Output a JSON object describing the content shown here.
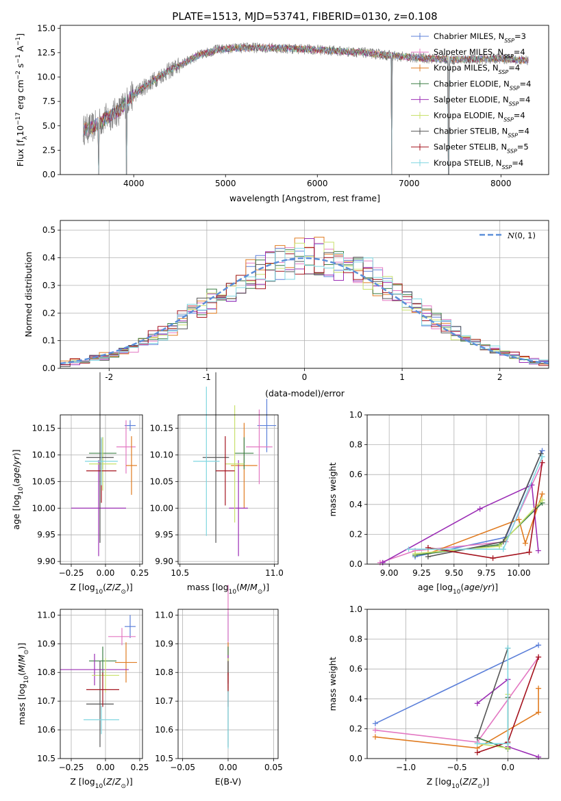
{
  "figure_title": "PLATE=1513, MJD=53741, FIBERID=0130, z=0.108",
  "colors": {
    "Chabrier MILES": "#5b7fd9",
    "Salpeter MILES": "#e377c2",
    "Kroupa MILES": "#e07b20",
    "Chabrier ELODIE": "#3a7d44",
    "Salpeter ELODIE": "#9b2db5",
    "Kroupa ELODIE": "#c8e06a",
    "Chabrier STELIB": "#555555",
    "Salpeter STELIB": "#a4121d",
    "Kroupa STELIB": "#7fd6e0",
    "spectrum": "#808080",
    "gaussian": "#5b8fd9"
  },
  "chart_data": [
    {
      "id": "spectrum",
      "type": "line",
      "title": "PLATE=1513, MJD=53741, FIBERID=0130, z=0.108",
      "xlabel": "wavelength [Angstrom, rest frame]",
      "ylabel": "Flux [f_λ10^-17 erg cm^-2 s^-1 A^-1]",
      "xlim": [
        3200,
        8520
      ],
      "ylim": [
        0,
        15.3
      ],
      "xticks": [
        4000,
        5000,
        6000,
        7000,
        8000
      ],
      "yticks": [
        0.0,
        2.5,
        5.0,
        7.5,
        10.0,
        12.5,
        15.0
      ],
      "grid": false,
      "legend_position": "right",
      "legend": [
        {
          "base": "Chabrier MILES, N",
          "sub": "SSP",
          "tail": "=3"
        },
        {
          "base": "Salpeter MILES, N",
          "sub": "SSP",
          "tail": "=4"
        },
        {
          "base": "Kroupa MILES, N",
          "sub": "SSP",
          "tail": "=4"
        },
        {
          "base": "Chabrier ELODIE, N",
          "sub": "SSP",
          "tail": "=4"
        },
        {
          "base": "Salpeter ELODIE, N",
          "sub": "SSP",
          "tail": "=4"
        },
        {
          "base": "Kroupa ELODIE, N",
          "sub": "SSP",
          "tail": "=4"
        },
        {
          "base": "Chabrier STELIB, N",
          "sub": "SSP",
          "tail": "=4"
        },
        {
          "base": "Salpeter STELIB, N",
          "sub": "SSP",
          "tail": "=5"
        },
        {
          "base": "Kroupa STELIB, N",
          "sub": "SSP",
          "tail": "=4"
        }
      ],
      "continuum": [
        [
          3450,
          4.6
        ],
        [
          3550,
          4.8
        ],
        [
          3700,
          5.8
        ],
        [
          3850,
          6.6
        ],
        [
          3950,
          7.8
        ],
        [
          4100,
          8.9
        ],
        [
          4300,
          10.2
        ],
        [
          4500,
          11.2
        ],
        [
          4700,
          12.2
        ],
        [
          4900,
          12.8
        ],
        [
          5200,
          13.0
        ],
        [
          5500,
          13.0
        ],
        [
          6000,
          12.8
        ],
        [
          6500,
          12.5
        ],
        [
          7000,
          12.0
        ],
        [
          7500,
          11.8
        ],
        [
          8000,
          11.9
        ],
        [
          8300,
          11.7
        ]
      ],
      "dips": [
        {
          "x": 3620,
          "y": 0.0
        },
        {
          "x": 3920,
          "y": 0.0
        },
        {
          "x": 6810,
          "y": 0.0
        },
        {
          "x": 7430,
          "y": 0.0
        }
      ]
    },
    {
      "id": "residuals",
      "type": "histogram",
      "xlabel": "(data-model)/error",
      "ylabel": "Normed distribution",
      "xlim": [
        -2.5,
        2.5
      ],
      "ylim": [
        0,
        0.535
      ],
      "xticks": [
        -2,
        -1,
        0,
        1,
        2
      ],
      "yticks": [
        0.0,
        0.1,
        0.2,
        0.3,
        0.4,
        0.5
      ],
      "grid": true,
      "bin_width": 0.1,
      "legend_position": "top-right",
      "gaussian_label": "N(0, 1)",
      "reference_curve": "normal(0,1)"
    },
    {
      "id": "age_vs_Z",
      "type": "errorbar",
      "xlabel": "Z [log10(Z/Z⊙)]",
      "ylabel": "age [log10(age/yr)]",
      "xlim": [
        -0.33,
        0.27
      ],
      "ylim": [
        9.895,
        10.175
      ],
      "xticks": [
        -0.25,
        0.0,
        0.25
      ],
      "xtick_labels": [
        "−0.25",
        "0.00",
        "0.25"
      ],
      "yticks": [
        9.9,
        9.95,
        10.0,
        10.05,
        10.1,
        10.15
      ],
      "ytick_labels": [
        "9.90",
        "9.95",
        "10.00",
        "10.05",
        "10.10",
        "10.15"
      ],
      "grid": true,
      "points": [
        {
          "model": "Chabrier MILES",
          "x": 0.18,
          "xerr": 0.04,
          "y": 10.155,
          "yerr": 0.01
        },
        {
          "model": "Salpeter MILES",
          "x": 0.15,
          "xerr": 0.07,
          "y": 10.115,
          "yerr": 0.05
        },
        {
          "model": "Kroupa MILES",
          "x": 0.19,
          "xerr": 0.04,
          "y": 10.08,
          "yerr": 0.055
        },
        {
          "model": "Chabrier ELODIE",
          "x": -0.02,
          "xerr": 0.1,
          "y": 10.103,
          "yerr": 0.03
        },
        {
          "model": "Salpeter ELODIE",
          "x": -0.05,
          "xerr": 0.2,
          "y": 10.0,
          "yerr": 0.09
        },
        {
          "model": "Kroupa ELODIE",
          "x": -0.02,
          "xerr": 0.1,
          "y": 10.083,
          "yerr": 0.05
        },
        {
          "model": "Chabrier STELIB",
          "x": -0.04,
          "xerr": 0.1,
          "y": 10.095,
          "yerr": 0.16
        },
        {
          "model": "Salpeter STELIB",
          "x": -0.03,
          "xerr": 0.11,
          "y": 10.07,
          "yerr": 0.06
        },
        {
          "model": "Kroupa STELIB",
          "x": -0.03,
          "xerr": 0.12,
          "y": 10.088,
          "yerr": 0.045
        }
      ]
    },
    {
      "id": "age_vs_mass",
      "type": "errorbar",
      "xlabel": "mass [log10(M/M⊙)]",
      "ylabel": "",
      "xlim": [
        10.49,
        11.02
      ],
      "ylim": [
        9.895,
        10.175
      ],
      "xticks": [
        10.5,
        11.0
      ],
      "xtick_labels": [
        "10.5",
        "11.0"
      ],
      "yticks": [
        9.9,
        9.95,
        10.0,
        10.05,
        10.1,
        10.15
      ],
      "ytick_labels": [
        "9.90",
        "9.95",
        "10.00",
        "10.05",
        "10.10",
        "10.15"
      ],
      "grid": true,
      "points": [
        {
          "model": "Chabrier MILES",
          "x": 10.96,
          "xerr": 0.05,
          "y": 10.155,
          "yerr": 0.05
        },
        {
          "model": "Salpeter MILES",
          "x": 10.92,
          "xerr": 0.07,
          "y": 10.115,
          "yerr": 0.07
        },
        {
          "model": "Kroupa MILES",
          "x": 10.84,
          "xerr": 0.07,
          "y": 10.08,
          "yerr": 0.08
        },
        {
          "model": "Chabrier ELODIE",
          "x": 10.84,
          "xerr": 0.05,
          "y": 10.103,
          "yerr": 0.03
        },
        {
          "model": "Salpeter ELODIE",
          "x": 10.81,
          "xerr": 0.05,
          "y": 10.0,
          "yerr": 0.09
        },
        {
          "model": "Kroupa ELODIE",
          "x": 10.79,
          "xerr": 0.05,
          "y": 10.083,
          "yerr": 0.11
        },
        {
          "model": "Chabrier STELIB",
          "x": 10.69,
          "xerr": 0.07,
          "y": 10.095,
          "yerr": 0.16
        },
        {
          "model": "Salpeter STELIB",
          "x": 10.74,
          "xerr": 0.05,
          "y": 10.07,
          "yerr": 0.065
        },
        {
          "model": "Kroupa STELIB",
          "x": 10.64,
          "xerr": 0.07,
          "y": 10.088,
          "yerr": 0.14
        }
      ]
    },
    {
      "id": "weight_vs_age",
      "type": "line",
      "xlabel": "age [log10(age/yr)]",
      "ylabel": "mass weight",
      "xlim": [
        8.83,
        10.23
      ],
      "ylim": [
        0,
        1.0
      ],
      "xticks": [
        9.0,
        9.25,
        9.5,
        9.75,
        10.0
      ],
      "xtick_labels": [
        "9.00",
        "9.25",
        "9.50",
        "9.75",
        "10.00"
      ],
      "yticks": [
        0.0,
        0.2,
        0.4,
        0.6,
        0.8,
        1.0
      ],
      "grid": true,
      "series": [
        {
          "model": "Chabrier MILES",
          "points": [
            [
              9.2,
              0.05
            ],
            [
              9.9,
              0.18
            ],
            [
              10.18,
              0.76
            ]
          ]
        },
        {
          "model": "Salpeter MILES",
          "points": [
            [
              8.93,
              0.01
            ],
            [
              9.2,
              0.09
            ],
            [
              9.9,
              0.15
            ],
            [
              10.18,
              0.68
            ]
          ]
        },
        {
          "model": "Kroupa MILES",
          "points": [
            [
              9.3,
              0.07
            ],
            [
              10.0,
              0.3
            ],
            [
              10.05,
              0.14
            ],
            [
              10.18,
              0.47
            ]
          ]
        },
        {
          "model": "Chabrier ELODIE",
          "points": [
            [
              9.2,
              0.06
            ],
            [
              9.85,
              0.13
            ],
            [
              10.18,
              0.41
            ]
          ]
        },
        {
          "model": "Salpeter ELODIE",
          "points": [
            [
              8.95,
              0.01
            ],
            [
              9.7,
              0.37
            ],
            [
              10.1,
              0.53
            ],
            [
              10.15,
              0.09
            ]
          ]
        },
        {
          "model": "Kroupa ELODIE",
          "points": [
            [
              9.2,
              0.07
            ],
            [
              9.85,
              0.12
            ],
            [
              10.18,
              0.43
            ]
          ]
        },
        {
          "model": "Chabrier STELIB",
          "points": [
            [
              9.3,
              0.05
            ],
            [
              9.88,
              0.15
            ],
            [
              10.17,
              0.74
            ]
          ]
        },
        {
          "model": "Salpeter STELIB",
          "points": [
            [
              9.3,
              0.11
            ],
            [
              9.8,
              0.04
            ],
            [
              10.08,
              0.08
            ],
            [
              10.18,
              0.68
            ]
          ]
        },
        {
          "model": "Kroupa STELIB",
          "points": [
            [
              9.15,
              0.1
            ],
            [
              9.88,
              0.1
            ],
            [
              10.18,
              0.72
            ]
          ]
        }
      ]
    },
    {
      "id": "mass_vs_Z",
      "type": "errorbar",
      "xlabel": "Z [log10(Z/Z⊙)]",
      "ylabel": "mass [log10(M/M⊙)]",
      "xlim": [
        -0.33,
        0.27
      ],
      "ylim": [
        10.5,
        11.02
      ],
      "xticks": [
        -0.25,
        0.0,
        0.25
      ],
      "xtick_labels": [
        "−0.25",
        "0.00",
        "0.25"
      ],
      "yticks": [
        10.5,
        10.6,
        10.7,
        10.8,
        10.9,
        11.0
      ],
      "ytick_labels": [
        "10.5",
        "10.6",
        "10.7",
        "10.8",
        "10.9",
        "11.0"
      ],
      "grid": true,
      "points": [
        {
          "model": "Chabrier MILES",
          "x": 0.18,
          "xerr": 0.04,
          "y": 10.96,
          "yerr": 0.04
        },
        {
          "model": "Salpeter MILES",
          "x": 0.12,
          "xerr": 0.1,
          "y": 10.925,
          "yerr": 0.03
        },
        {
          "model": "Kroupa MILES",
          "x": 0.15,
          "xerr": 0.08,
          "y": 10.835,
          "yerr": 0.07
        },
        {
          "model": "Chabrier ELODIE",
          "x": -0.02,
          "xerr": 0.1,
          "y": 10.84,
          "yerr": 0.05
        },
        {
          "model": "Salpeter ELODIE",
          "x": -0.08,
          "xerr": 0.25,
          "y": 10.81,
          "yerr": 0.055
        },
        {
          "model": "Kroupa ELODIE",
          "x": 0.0,
          "xerr": 0.1,
          "y": 10.79,
          "yerr": 0.06
        },
        {
          "model": "Chabrier STELIB",
          "x": -0.04,
          "xerr": 0.1,
          "y": 10.69,
          "yerr": 0.15
        },
        {
          "model": "Salpeter STELIB",
          "x": -0.02,
          "xerr": 0.12,
          "y": 10.74,
          "yerr": 0.06
        },
        {
          "model": "Kroupa STELIB",
          "x": -0.03,
          "xerr": 0.13,
          "y": 10.635,
          "yerr": 0.05
        }
      ]
    },
    {
      "id": "mass_vs_EBV",
      "type": "errorbar",
      "xlabel": "E(B-V)",
      "ylabel": "",
      "xlim": [
        -0.055,
        0.055
      ],
      "ylim": [
        10.5,
        11.02
      ],
      "xticks": [
        -0.05,
        0.0,
        0.05
      ],
      "xtick_labels": [
        "−0.05",
        "0.00",
        "0.05"
      ],
      "yticks": [
        10.5,
        10.6,
        10.7,
        10.8,
        10.9,
        11.0
      ],
      "ytick_labels": [
        "10.5",
        "10.6",
        "10.7",
        "10.8",
        "10.9",
        "11.0"
      ],
      "grid": true,
      "points": [
        {
          "model": "Chabrier MILES",
          "x": 0.0,
          "xerr": 0.0,
          "y": 10.96,
          "yerr": 0.05
        },
        {
          "model": "Salpeter MILES",
          "x": 0.0,
          "xerr": 0.0,
          "y": 10.925,
          "yerr": 0.18
        },
        {
          "model": "Kroupa MILES",
          "x": 0.0,
          "xerr": 0.0,
          "y": 10.835,
          "yerr": 0.07
        },
        {
          "model": "Chabrier ELODIE",
          "x": 0.0,
          "xerr": 0.0,
          "y": 10.84,
          "yerr": 0.05
        },
        {
          "model": "Salpeter ELODIE",
          "x": 0.0,
          "xerr": 0.0,
          "y": 10.81,
          "yerr": 0.05
        },
        {
          "model": "Kroupa ELODIE",
          "x": 0.0,
          "xerr": 0.0,
          "y": 10.79,
          "yerr": 0.06
        },
        {
          "model": "Chabrier STELIB",
          "x": 0.0,
          "xerr": 0.0,
          "y": 10.69,
          "yerr": 0.15
        },
        {
          "model": "Salpeter STELIB",
          "x": 0.0,
          "xerr": 0.0,
          "y": 10.74,
          "yerr": 0.06
        },
        {
          "model": "Kroupa STELIB",
          "x": 0.0,
          "xerr": 0.0,
          "y": 10.635,
          "yerr": 0.1
        }
      ]
    },
    {
      "id": "weight_vs_Z",
      "type": "line",
      "xlabel": "Z [log10(Z/Z⊙)]",
      "ylabel": "mass weight",
      "xlim": [
        -1.38,
        0.4
      ],
      "ylim": [
        0,
        1.0
      ],
      "xticks": [
        -1.0,
        -0.5,
        0.0
      ],
      "xtick_labels": [
        "−1.0",
        "−0.5",
        "0.0"
      ],
      "yticks": [
        0.0,
        0.2,
        0.4,
        0.6,
        0.8,
        1.0
      ],
      "grid": true,
      "series": [
        {
          "model": "Chabrier MILES",
          "points": [
            [
              -1.3,
              0.235
            ],
            [
              0.3,
              0.76
            ]
          ]
        },
        {
          "model": "Salpeter MILES",
          "points": [
            [
              -1.3,
              0.19
            ],
            [
              -0.3,
              0.11
            ],
            [
              0.3,
              0.68
            ]
          ]
        },
        {
          "model": "Kroupa MILES",
          "points": [
            [
              -1.3,
              0.145
            ],
            [
              -0.3,
              0.07
            ],
            [
              0.3,
              0.31
            ],
            [
              0.3,
              0.47
            ]
          ]
        },
        {
          "model": "Chabrier ELODIE",
          "points": [
            [
              -0.3,
              0.14
            ],
            [
              0.0,
              0.065
            ],
            [
              0.0,
              0.41
            ]
          ]
        },
        {
          "model": "Salpeter ELODIE",
          "points": [
            [
              -0.3,
              0.37
            ],
            [
              0.0,
              0.53
            ],
            [
              0.0,
              0.08
            ],
            [
              0.3,
              0.01
            ]
          ]
        },
        {
          "model": "Kroupa ELODIE",
          "points": [
            [
              -0.3,
              0.1
            ],
            [
              0.0,
              0.07
            ],
            [
              0.0,
              0.43
            ]
          ]
        },
        {
          "model": "Chabrier STELIB",
          "points": [
            [
              -0.3,
              0.14
            ],
            [
              0.0,
              0.74
            ]
          ]
        },
        {
          "model": "Salpeter STELIB",
          "points": [
            [
              -0.3,
              0.04
            ],
            [
              0.0,
              0.11
            ],
            [
              0.3,
              0.68
            ]
          ]
        },
        {
          "model": "Kroupa STELIB",
          "points": [
            [
              -0.3,
              0.1
            ],
            [
              0.0,
              0.1
            ],
            [
              0.0,
              0.74
            ]
          ]
        }
      ]
    }
  ]
}
